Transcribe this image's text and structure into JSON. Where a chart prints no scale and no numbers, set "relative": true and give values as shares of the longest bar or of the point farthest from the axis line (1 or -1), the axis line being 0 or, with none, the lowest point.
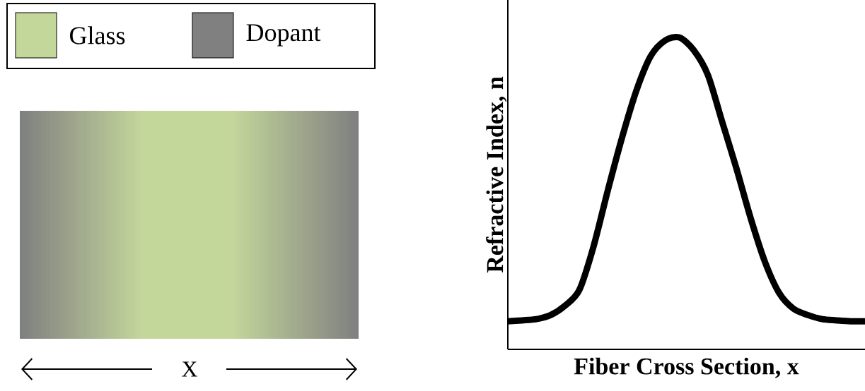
{
  "chart_data": [
    {
      "type": "other",
      "categories": [
        "Glass",
        "Dopant"
      ],
      "colors": [
        "#c4d79b",
        "#808080"
      ],
      "annotations": [
        "X"
      ]
    },
    {
      "type": "line",
      "relative": true,
      "xlabel": "Fiber Cross Section, x",
      "ylabel": "Refractive Index, n",
      "categories": [
        null,
        null,
        null,
        null,
        null,
        null,
        null,
        null,
        null,
        null,
        null,
        null,
        null,
        null,
        null,
        null,
        null,
        null,
        null,
        null,
        null,
        null,
        null,
        null,
        null,
        null
      ],
      "series": [
        {
          "color": "#000000",
          "values": [
            0.09,
            0.093,
            0.097,
            0.11,
            0.14,
            0.19,
            0.33,
            0.51,
            0.68,
            0.83,
            0.94,
            0.99,
            1.0,
            0.96,
            0.88,
            0.73,
            0.58,
            0.42,
            0.28,
            0.18,
            0.13,
            0.11,
            0.097,
            0.093,
            0.09,
            0.09
          ]
        }
      ]
    }
  ]
}
